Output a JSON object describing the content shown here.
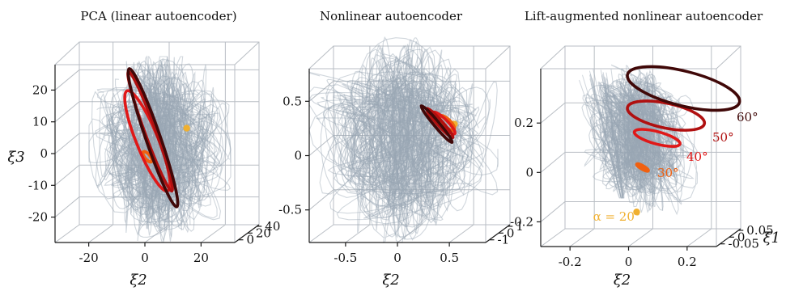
{
  "chart_data": [
    {
      "type": "line",
      "title": "PCA (linear autoencoder)",
      "xlabel": "ξ2",
      "ylabel": "ξ3",
      "x_ticks": [
        "-20",
        "0",
        "20"
      ],
      "depth_ticks": [
        "0",
        "20",
        "40"
      ],
      "z_ticks": [
        "20",
        "10",
        "0",
        "-10",
        "-20"
      ],
      "grid": true,
      "series": [
        {
          "name": "",
          "color": "#f0b030",
          "kind": "fixed-point",
          "value": [
            12,
            8
          ]
        },
        {
          "name": "",
          "color": "#f06010",
          "kind": "orbit",
          "center": [
            -2,
            -1
          ],
          "radii": [
            1.5,
            2
          ],
          "angle": 40
        },
        {
          "name": "",
          "color": "#e01818",
          "kind": "orbit",
          "center": [
            -2,
            4
          ],
          "radii": [
            6,
            17
          ],
          "angle": 22
        },
        {
          "name": "",
          "color": "#b01010",
          "kind": "orbit",
          "center": [
            -1,
            7
          ],
          "radii": [
            3,
            20
          ],
          "angle": 20
        },
        {
          "name": "",
          "color": "#400808",
          "kind": "orbit",
          "center": [
            0,
            5
          ],
          "radii": [
            4,
            23
          ],
          "angle": 19
        }
      ]
    },
    {
      "type": "line",
      "title": "Nonlinear autoencoder",
      "xlabel": "ξ2",
      "ylabel": "",
      "x_ticks": [
        "-0.5",
        "0",
        "0.5"
      ],
      "depth_ticks": [
        "-1",
        "0",
        "1"
      ],
      "z_ticks": [
        "0.5",
        "0",
        "-0.5"
      ],
      "grid": true,
      "series": [
        {
          "name": "",
          "color": "#f0b030",
          "kind": "fixed-point",
          "value": [
            0.47,
            0.29
          ]
        },
        {
          "name": "",
          "color": "#f06010",
          "kind": "orbit",
          "center": [
            0.4,
            0.3
          ],
          "radii": [
            0.04,
            0.09
          ],
          "angle": 45
        },
        {
          "name": "",
          "color": "#e01818",
          "kind": "orbit",
          "center": [
            0.37,
            0.3
          ],
          "radii": [
            0.04,
            0.14
          ],
          "angle": 45
        },
        {
          "name": "",
          "color": "#b01010",
          "kind": "orbit",
          "center": [
            0.33,
            0.3
          ],
          "radii": [
            0.03,
            0.18
          ],
          "angle": 42
        },
        {
          "name": "",
          "color": "#400808",
          "kind": "orbit",
          "center": [
            0.3,
            0.29
          ],
          "radii": [
            0.03,
            0.22
          ],
          "angle": 40
        }
      ]
    },
    {
      "type": "line",
      "title": "Lift-augmented nonlinear autoencoder",
      "xlabel": "ξ2",
      "ylabel": "ξ1",
      "x_ticks": [
        "-0.2",
        "0",
        "0.2"
      ],
      "depth_ticks": [
        "-0.05",
        "0",
        "0.05"
      ],
      "z_ticks": [
        "0.2",
        "0",
        "-0.2"
      ],
      "grid": true,
      "series": [
        {
          "name": "α = 20°",
          "color": "#f0b030",
          "kind": "fixed-point",
          "value": [
            0.0,
            -0.16
          ]
        },
        {
          "name": "30°",
          "color": "#f06010",
          "kind": "orbit",
          "center": [
            0.02,
            0.02
          ],
          "radii": [
            0.025,
            0.006
          ],
          "angle": -30
        },
        {
          "name": "40°",
          "color": "#e01818",
          "kind": "orbit",
          "center": [
            0.07,
            0.14
          ],
          "radii": [
            0.09,
            0.025
          ],
          "angle": -15
        },
        {
          "name": "50°",
          "color": "#b01010",
          "kind": "orbit",
          "center": [
            0.1,
            0.23
          ],
          "radii": [
            0.15,
            0.05
          ],
          "angle": -12
        },
        {
          "name": "60°",
          "color": "#400808",
          "kind": "orbit",
          "center": [
            0.16,
            0.34
          ],
          "radii": [
            0.22,
            0.07
          ],
          "angle": -14
        }
      ]
    }
  ],
  "background_color": "#9aa6b3"
}
